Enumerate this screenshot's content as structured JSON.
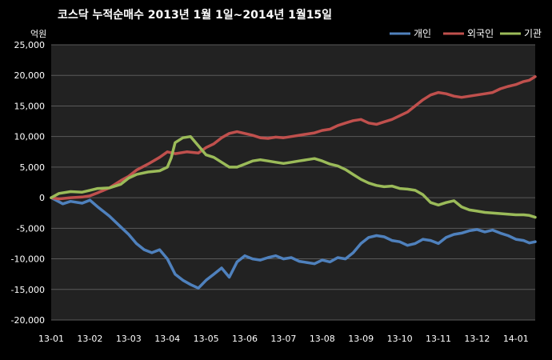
{
  "chart_data": {
    "type": "line",
    "title": "코스닥  누적순매수 2013년 1월 1일~2014년 1월15일",
    "y_unit": "억원",
    "ylim": [
      -20000,
      25000
    ],
    "y_ticks": [
      "25,000",
      "20,000",
      "15,000",
      "10,000",
      "5,000",
      "0",
      "-5,000",
      "-10,000",
      "-15,000",
      "-20,000"
    ],
    "y_tick_values": [
      25000,
      20000,
      15000,
      10000,
      5000,
      0,
      -5000,
      -10000,
      -15000,
      -20000
    ],
    "x_ticks": [
      "13-01",
      "13-02",
      "13-03",
      "13-04",
      "13-05",
      "13-06",
      "13-07",
      "13-08",
      "13-09",
      "13-10",
      "13-11",
      "13-12",
      "14-01"
    ],
    "x_tick_values": [
      0,
      1,
      2,
      3,
      4,
      5,
      6,
      7,
      8,
      9,
      10,
      11,
      12
    ],
    "xlim": [
      0,
      12.5
    ],
    "grid": true,
    "legend_position": "top-right",
    "series": [
      {
        "name": "개인",
        "color": "#4f81bd",
        "x": [
          0,
          0.15,
          0.3,
          0.5,
          0.8,
          1.0,
          1.2,
          1.5,
          1.8,
          2.0,
          2.2,
          2.4,
          2.6,
          2.8,
          3.0,
          3.2,
          3.4,
          3.6,
          3.8,
          4.0,
          4.2,
          4.4,
          4.6,
          4.8,
          5.0,
          5.2,
          5.4,
          5.6,
          5.8,
          6.0,
          6.2,
          6.4,
          6.6,
          6.8,
          7.0,
          7.2,
          7.4,
          7.6,
          7.8,
          8.0,
          8.2,
          8.4,
          8.6,
          8.8,
          9.0,
          9.2,
          9.4,
          9.6,
          9.8,
          10.0,
          10.2,
          10.4,
          10.6,
          10.8,
          11.0,
          11.2,
          11.4,
          11.6,
          11.8,
          12.0,
          12.2,
          12.35,
          12.5
        ],
        "y": [
          0,
          -500,
          -1000,
          -600,
          -900,
          -400,
          -1500,
          -3000,
          -4800,
          -6000,
          -7500,
          -8500,
          -9000,
          -8500,
          -10000,
          -12500,
          -13500,
          -14200,
          -14800,
          -13500,
          -12500,
          -11500,
          -13000,
          -10500,
          -9500,
          -10000,
          -10200,
          -9800,
          -9500,
          -10000,
          -9800,
          -10400,
          -10600,
          -10800,
          -10200,
          -10500,
          -9800,
          -10000,
          -9000,
          -7500,
          -6500,
          -6200,
          -6400,
          -7000,
          -7200,
          -7800,
          -7500,
          -6800,
          -7000,
          -7500,
          -6500,
          -6000,
          -5800,
          -5400,
          -5200,
          -5600,
          -5300,
          -5800,
          -6200,
          -6800,
          -7000,
          -7400,
          -7200
        ]
      },
      {
        "name": "외국인",
        "color": "#c0504d",
        "x": [
          0,
          0.2,
          0.5,
          0.8,
          1.0,
          1.2,
          1.5,
          1.8,
          2.0,
          2.2,
          2.5,
          2.8,
          3.0,
          3.2,
          3.5,
          3.8,
          4.0,
          4.2,
          4.4,
          4.6,
          4.8,
          5.0,
          5.2,
          5.4,
          5.6,
          5.8,
          6.0,
          6.2,
          6.4,
          6.6,
          6.8,
          7.0,
          7.2,
          7.4,
          7.6,
          7.8,
          8.0,
          8.2,
          8.4,
          8.6,
          8.8,
          9.0,
          9.2,
          9.4,
          9.6,
          9.8,
          10.0,
          10.2,
          10.4,
          10.6,
          10.8,
          11.0,
          11.2,
          11.4,
          11.6,
          11.8,
          12.0,
          12.2,
          12.35,
          12.5
        ],
        "y": [
          0,
          -200,
          0,
          100,
          300,
          800,
          1600,
          2800,
          3500,
          4500,
          5500,
          6600,
          7500,
          7200,
          7500,
          7300,
          8200,
          8800,
          9800,
          10500,
          10800,
          10500,
          10200,
          9800,
          9700,
          9900,
          9800,
          10000,
          10200,
          10400,
          10600,
          11000,
          11200,
          11800,
          12200,
          12600,
          12800,
          12200,
          12000,
          12400,
          12800,
          13400,
          14000,
          15000,
          16000,
          16800,
          17200,
          17000,
          16600,
          16400,
          16600,
          16800,
          17000,
          17200,
          17800,
          18200,
          18500,
          19000,
          19200,
          19800
        ]
      },
      {
        "name": "기관",
        "color": "#9bbb59",
        "x": [
          0,
          0.2,
          0.5,
          0.8,
          1.0,
          1.2,
          1.5,
          1.8,
          2.0,
          2.2,
          2.5,
          2.8,
          3.0,
          3.1,
          3.2,
          3.4,
          3.6,
          3.8,
          4.0,
          4.2,
          4.4,
          4.6,
          4.8,
          5.0,
          5.2,
          5.4,
          5.6,
          5.8,
          6.0,
          6.2,
          6.4,
          6.6,
          6.8,
          7.0,
          7.2,
          7.4,
          7.6,
          7.8,
          8.0,
          8.2,
          8.4,
          8.6,
          8.8,
          9.0,
          9.2,
          9.4,
          9.6,
          9.8,
          10.0,
          10.2,
          10.4,
          10.6,
          10.8,
          11.0,
          11.2,
          11.4,
          11.6,
          11.8,
          12.0,
          12.2,
          12.35,
          12.5
        ],
        "y": [
          0,
          700,
          1000,
          900,
          1200,
          1500,
          1600,
          2200,
          3200,
          3800,
          4200,
          4400,
          5000,
          6500,
          9000,
          9800,
          10000,
          8500,
          7000,
          6600,
          5800,
          5000,
          5000,
          5500,
          6000,
          6200,
          6000,
          5800,
          5600,
          5800,
          6000,
          6200,
          6400,
          6000,
          5500,
          5200,
          4600,
          3800,
          3000,
          2400,
          2000,
          1800,
          1900,
          1500,
          1400,
          1200,
          500,
          -800,
          -1200,
          -800,
          -500,
          -1500,
          -2000,
          -2200,
          -2400,
          -2500,
          -2600,
          -2700,
          -2800,
          -2800,
          -2900,
          -3200
        ]
      }
    ]
  }
}
